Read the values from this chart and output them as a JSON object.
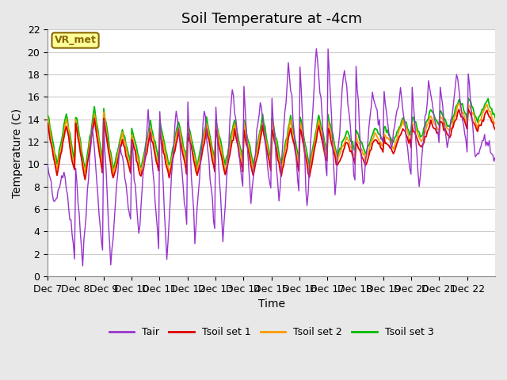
{
  "title": "Soil Temperature at -4cm",
  "xlabel": "Time",
  "ylabel": "Temperature (C)",
  "ylim": [
    0,
    22
  ],
  "yticks": [
    0,
    2,
    4,
    6,
    8,
    10,
    12,
    14,
    16,
    18,
    20,
    22
  ],
  "xtick_labels": [
    "Dec 7",
    "Dec 8",
    "Dec 9",
    "Dec 10",
    "Dec 11",
    "Dec 12",
    "Dec 13",
    "Dec 14",
    "Dec 15",
    "Dec 16",
    "Dec 17",
    "Dec 18",
    "Dec 19",
    "Dec 20",
    "Dec 21",
    "Dec 22"
  ],
  "legend_labels": [
    "Tair",
    "Tsoil set 1",
    "Tsoil set 2",
    "Tsoil set 3"
  ],
  "legend_colors": [
    "#9933cc",
    "#dd0000",
    "#ff9900",
    "#00bb00"
  ],
  "annotation_text": "VR_met",
  "annotation_bg": "#ffff99",
  "annotation_border": "#886600",
  "fig_bg": "#e8e8e8",
  "plot_bg": "#ffffff",
  "grid_color": "#cccccc",
  "title_fontsize": 13,
  "axis_fontsize": 10,
  "tick_fontsize": 9
}
